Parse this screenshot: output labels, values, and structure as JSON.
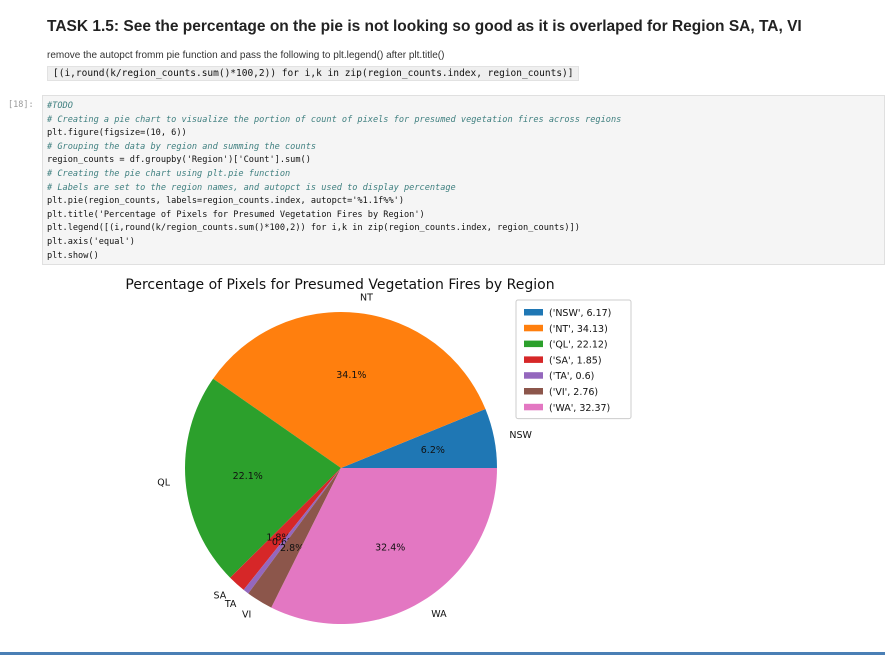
{
  "markdown": {
    "title": "TASK 1.5: See the percentage on the pie is not looking so good as it is overlaped for Region SA, TA, VI",
    "instruction": "remove the autopct fromm pie function and pass the following to plt.legend() after plt.title()",
    "code_snippet": "[(i,round(k/region_counts.sum()*100,2)) for i,k in zip(region_counts.index, region_counts)]"
  },
  "cell": {
    "prompt": "[18]:",
    "lines": [
      {
        "text": "#TODO",
        "comment": true
      },
      {
        "text": "# Creating a pie chart to visualize the portion of count of pixels for presumed vegetation fires across regions",
        "comment": true
      },
      {
        "text": "plt.figure(figsize=(10, 6))",
        "comment": false
      },
      {
        "text": "# Grouping the data by region and summing the counts",
        "comment": true
      },
      {
        "text": "region_counts = df.groupby('Region')['Count'].sum()",
        "comment": false
      },
      {
        "text": "# Creating the pie chart using plt.pie function",
        "comment": true
      },
      {
        "text": "# Labels are set to the region names, and autopct is used to display percentage",
        "comment": true
      },
      {
        "text": "plt.pie(region_counts, labels=region_counts.index, autopct='%1.1f%%')",
        "comment": false
      },
      {
        "text": "plt.title('Percentage of Pixels for Presumed Vegetation Fires by Region')",
        "comment": false
      },
      {
        "text": "plt.legend([(i,round(k/region_counts.sum()*100,2)) for i,k in zip(region_counts.index, region_counts)])",
        "comment": false
      },
      {
        "text": "plt.axis('equal')",
        "comment": false
      },
      {
        "text": "plt.show()",
        "comment": false
      }
    ]
  },
  "chart_data": {
    "type": "pie",
    "title": "Percentage of Pixels for Presumed Vegetation Fires by Region",
    "categories": [
      "NSW",
      "NT",
      "QL",
      "SA",
      "TA",
      "VI",
      "WA"
    ],
    "values": [
      6.17,
      34.13,
      22.12,
      1.85,
      0.6,
      2.76,
      32.37
    ],
    "pct_labels": [
      "6.2%",
      "34.1%",
      "22.1%",
      "1.8%",
      "0.6%",
      "2.8%",
      "32.4%"
    ],
    "colors": [
      "#1f77b4",
      "#ff7f0e",
      "#2ca02c",
      "#d62728",
      "#9467bd",
      "#8c564b",
      "#e377c2"
    ],
    "legend": [
      "('NSW', 6.17)",
      "('NT', 34.13)",
      "('QL', 22.12)",
      "('SA', 1.85)",
      "('TA', 0.6)",
      "('VI', 2.76)",
      "('WA', 32.37)"
    ],
    "legend_placement": "upper-right",
    "start_angle": 0,
    "direction": "counterclockwise"
  }
}
